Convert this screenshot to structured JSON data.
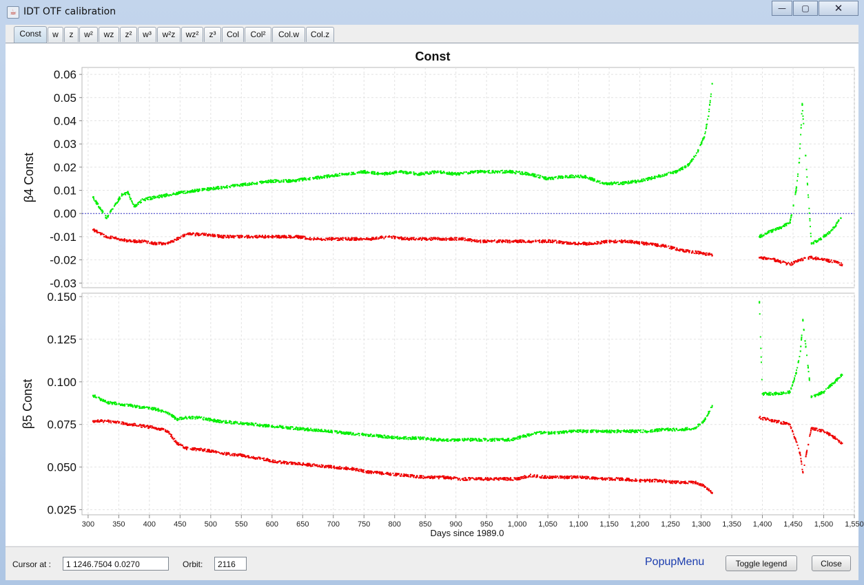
{
  "window": {
    "title": "IDT OTF calibration",
    "minimize_glyph": "—",
    "maximize_glyph": "▢",
    "close_glyph": "✕"
  },
  "tabs": [
    {
      "label": "Const",
      "active": true
    },
    {
      "label": "w"
    },
    {
      "label": "z"
    },
    {
      "label": "w²"
    },
    {
      "label": "wz"
    },
    {
      "label": "z²"
    },
    {
      "label": "w³"
    },
    {
      "label": "w²z"
    },
    {
      "label": "wz²"
    },
    {
      "label": "z³"
    },
    {
      "label": "Col"
    },
    {
      "label": "Col²"
    },
    {
      "label": "Col.w"
    },
    {
      "label": "Col.z"
    }
  ],
  "chart_data": {
    "type": "scatter",
    "title": "Const",
    "xlabel": "Days since 1989.0",
    "xlim": [
      290,
      1550
    ],
    "x_ticks": [
      "300",
      "350",
      "400",
      "450",
      "500",
      "550",
      "600",
      "650",
      "700",
      "750",
      "800",
      "850",
      "900",
      "950",
      "1,000",
      "1,050",
      "1,100",
      "1,150",
      "1,200",
      "1,250",
      "1,300",
      "1,350",
      "1,400",
      "1,450",
      "1,500",
      "1,550"
    ],
    "grid": true,
    "colors": {
      "green": "#00ee00",
      "red": "#ee0000",
      "zero_line": "#3333cc"
    },
    "panels": [
      {
        "ylabel": "β4 Const",
        "ylim": [
          -0.032,
          0.063
        ],
        "y_ticks": [
          "-0.03",
          "-0.02",
          "-0.01",
          "0.00",
          "0.01",
          "0.02",
          "0.03",
          "0.04",
          "0.05",
          "0.06"
        ],
        "y_tick_values": [
          -0.03,
          -0.02,
          -0.01,
          0,
          0.01,
          0.02,
          0.03,
          0.04,
          0.05,
          0.06
        ],
        "zero_line": true,
        "series": [
          {
            "color": "green",
            "points": [
              [
                308,
                0.007
              ],
              [
                330,
                -0.002
              ],
              [
                340,
                0.002
              ],
              [
                355,
                0.008
              ],
              [
                365,
                0.009
              ],
              [
                375,
                0.003
              ],
              [
                390,
                0.006
              ],
              [
                410,
                0.007
              ],
              [
                430,
                0.008
              ],
              [
                450,
                0.009
              ],
              [
                480,
                0.01
              ],
              [
                510,
                0.011
              ],
              [
                540,
                0.012
              ],
              [
                570,
                0.013
              ],
              [
                600,
                0.014
              ],
              [
                630,
                0.014
              ],
              [
                660,
                0.015
              ],
              [
                690,
                0.016
              ],
              [
                720,
                0.017
              ],
              [
                750,
                0.018
              ],
              [
                780,
                0.017
              ],
              [
                810,
                0.018
              ],
              [
                840,
                0.017
              ],
              [
                870,
                0.018
              ],
              [
                900,
                0.017
              ],
              [
                930,
                0.018
              ],
              [
                960,
                0.018
              ],
              [
                990,
                0.018
              ],
              [
                1020,
                0.017
              ],
              [
                1050,
                0.015
              ],
              [
                1080,
                0.016
              ],
              [
                1110,
                0.016
              ],
              [
                1140,
                0.013
              ],
              [
                1170,
                0.013
              ],
              [
                1200,
                0.014
              ],
              [
                1230,
                0.016
              ],
              [
                1260,
                0.018
              ],
              [
                1280,
                0.021
              ],
              [
                1295,
                0.027
              ],
              [
                1305,
                0.033
              ],
              [
                1312,
                0.042
              ],
              [
                1318,
                0.056
              ],
              [
                1395,
                -0.01
              ],
              [
                1410,
                -0.008
              ],
              [
                1430,
                -0.006
              ],
              [
                1445,
                -0.004
              ],
              [
                1455,
                0.01
              ],
              [
                1460,
                0.022
              ],
              [
                1463,
                0.037
              ],
              [
                1465,
                0.047
              ],
              [
                1480,
                -0.013
              ],
              [
                1495,
                -0.011
              ],
              [
                1510,
                -0.008
              ],
              [
                1520,
                -0.005
              ],
              [
                1528,
                -0.002
              ]
            ]
          },
          {
            "color": "red",
            "points": [
              [
                308,
                -0.007
              ],
              [
                330,
                -0.01
              ],
              [
                350,
                -0.011
              ],
              [
                370,
                -0.012
              ],
              [
                390,
                -0.012
              ],
              [
                410,
                -0.013
              ],
              [
                430,
                -0.013
              ],
              [
                445,
                -0.011
              ],
              [
                460,
                -0.009
              ],
              [
                490,
                -0.009
              ],
              [
                520,
                -0.01
              ],
              [
                550,
                -0.01
              ],
              [
                580,
                -0.01
              ],
              [
                610,
                -0.01
              ],
              [
                640,
                -0.01
              ],
              [
                670,
                -0.011
              ],
              [
                700,
                -0.011
              ],
              [
                730,
                -0.011
              ],
              [
                760,
                -0.011
              ],
              [
                790,
                -0.01
              ],
              [
                820,
                -0.011
              ],
              [
                850,
                -0.011
              ],
              [
                880,
                -0.011
              ],
              [
                910,
                -0.011
              ],
              [
                940,
                -0.012
              ],
              [
                970,
                -0.012
              ],
              [
                1000,
                -0.012
              ],
              [
                1030,
                -0.012
              ],
              [
                1060,
                -0.012
              ],
              [
                1090,
                -0.013
              ],
              [
                1120,
                -0.013
              ],
              [
                1150,
                -0.012
              ],
              [
                1180,
                -0.012
              ],
              [
                1210,
                -0.013
              ],
              [
                1240,
                -0.014
              ],
              [
                1270,
                -0.016
              ],
              [
                1300,
                -0.017
              ],
              [
                1318,
                -0.018
              ],
              [
                1395,
                -0.019
              ],
              [
                1420,
                -0.02
              ],
              [
                1445,
                -0.022
              ],
              [
                1462,
                -0.02
              ],
              [
                1480,
                -0.019
              ],
              [
                1500,
                -0.02
              ],
              [
                1520,
                -0.021
              ],
              [
                1530,
                -0.022
              ]
            ]
          }
        ]
      },
      {
        "ylabel": "β5 Const",
        "ylim": [
          0.022,
          0.152
        ],
        "y_ticks": [
          "0.025",
          "0.050",
          "0.075",
          "0.100",
          "0.125",
          "0.150"
        ],
        "y_tick_values": [
          0.025,
          0.05,
          0.075,
          0.1,
          0.125,
          0.15
        ],
        "zero_line": false,
        "series": [
          {
            "color": "green",
            "points": [
              [
                308,
                0.092
              ],
              [
                330,
                0.088
              ],
              [
                350,
                0.087
              ],
              [
                370,
                0.086
              ],
              [
                390,
                0.085
              ],
              [
                410,
                0.084
              ],
              [
                430,
                0.082
              ],
              [
                445,
                0.078
              ],
              [
                460,
                0.079
              ],
              [
                480,
                0.079
              ],
              [
                510,
                0.077
              ],
              [
                540,
                0.076
              ],
              [
                570,
                0.075
              ],
              [
                600,
                0.074
              ],
              [
                630,
                0.073
              ],
              [
                660,
                0.072
              ],
              [
                690,
                0.071
              ],
              [
                720,
                0.07
              ],
              [
                750,
                0.069
              ],
              [
                780,
                0.068
              ],
              [
                810,
                0.067
              ],
              [
                840,
                0.067
              ],
              [
                870,
                0.066
              ],
              [
                900,
                0.066
              ],
              [
                930,
                0.066
              ],
              [
                960,
                0.066
              ],
              [
                990,
                0.066
              ],
              [
                1010,
                0.068
              ],
              [
                1030,
                0.07
              ],
              [
                1060,
                0.07
              ],
              [
                1090,
                0.071
              ],
              [
                1120,
                0.071
              ],
              [
                1150,
                0.071
              ],
              [
                1180,
                0.071
              ],
              [
                1210,
                0.071
              ],
              [
                1240,
                0.072
              ],
              [
                1270,
                0.072
              ],
              [
                1290,
                0.073
              ],
              [
                1305,
                0.077
              ],
              [
                1318,
                0.086
              ],
              [
                1395,
                0.147
              ],
              [
                1400,
                0.093
              ],
              [
                1420,
                0.093
              ],
              [
                1445,
                0.094
              ],
              [
                1455,
                0.105
              ],
              [
                1462,
                0.118
              ],
              [
                1466,
                0.136
              ],
              [
                1480,
                0.091
              ],
              [
                1500,
                0.094
              ],
              [
                1515,
                0.099
              ],
              [
                1530,
                0.104
              ]
            ]
          },
          {
            "color": "red",
            "points": [
              [
                308,
                0.077
              ],
              [
                330,
                0.077
              ],
              [
                350,
                0.076
              ],
              [
                370,
                0.075
              ],
              [
                390,
                0.074
              ],
              [
                410,
                0.073
              ],
              [
                430,
                0.071
              ],
              [
                445,
                0.064
              ],
              [
                460,
                0.061
              ],
              [
                490,
                0.06
              ],
              [
                520,
                0.058
              ],
              [
                550,
                0.057
              ],
              [
                580,
                0.055
              ],
              [
                610,
                0.053
              ],
              [
                640,
                0.052
              ],
              [
                670,
                0.051
              ],
              [
                700,
                0.05
              ],
              [
                730,
                0.049
              ],
              [
                760,
                0.047
              ],
              [
                790,
                0.046
              ],
              [
                820,
                0.045
              ],
              [
                850,
                0.044
              ],
              [
                880,
                0.044
              ],
              [
                910,
                0.043
              ],
              [
                940,
                0.043
              ],
              [
                970,
                0.043
              ],
              [
                1000,
                0.043
              ],
              [
                1020,
                0.045
              ],
              [
                1050,
                0.044
              ],
              [
                1080,
                0.044
              ],
              [
                1110,
                0.044
              ],
              [
                1140,
                0.043
              ],
              [
                1170,
                0.043
              ],
              [
                1200,
                0.042
              ],
              [
                1230,
                0.042
              ],
              [
                1260,
                0.041
              ],
              [
                1290,
                0.041
              ],
              [
                1305,
                0.039
              ],
              [
                1318,
                0.035
              ],
              [
                1395,
                0.079
              ],
              [
                1420,
                0.077
              ],
              [
                1445,
                0.075
              ],
              [
                1455,
                0.065
              ],
              [
                1462,
                0.057
              ],
              [
                1466,
                0.047
              ],
              [
                1480,
                0.073
              ],
              [
                1500,
                0.071
              ],
              [
                1515,
                0.068
              ],
              [
                1530,
                0.064
              ]
            ]
          }
        ]
      }
    ]
  },
  "statusbar": {
    "cursor_label": "Cursor at :",
    "cursor_value": "1   1246.7504   0.0270",
    "orbit_label": "Orbit:",
    "orbit_value": "2116",
    "popup_menu_label": "PopupMenu",
    "toggle_legend_label": "Toggle legend",
    "close_label": "Close"
  }
}
